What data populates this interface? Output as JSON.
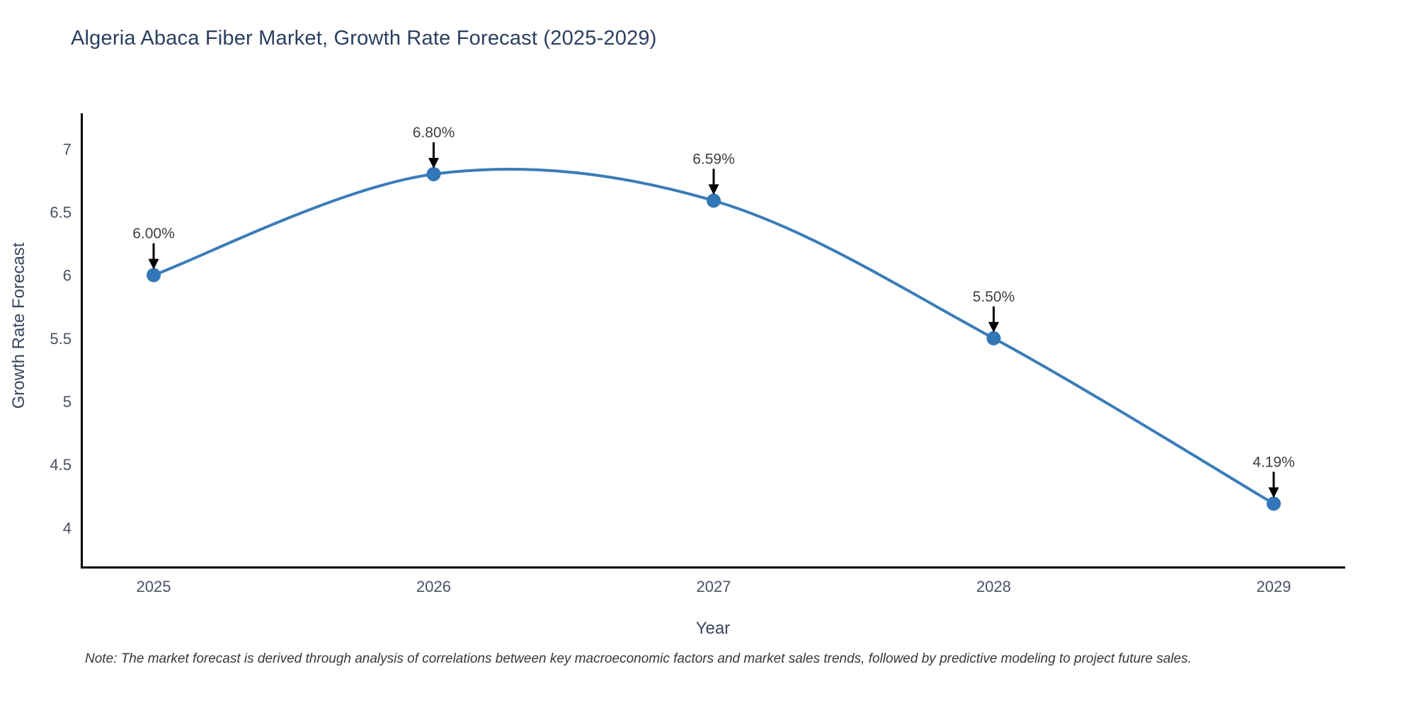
{
  "title": "Algeria Abaca Fiber Market, Growth Rate Forecast (2025-2029)",
  "note": "Note: The market forecast is derived through analysis of correlations between key macroeconomic factors and market sales trends, followed by predictive modeling to project future sales.",
  "chart_data": {
    "type": "line",
    "line_shape": "spline",
    "title": "Algeria Abaca Fiber Market, Growth Rate Forecast (2025-2029)",
    "xlabel": "Year",
    "ylabel": "Growth Rate Forecast",
    "x": [
      2025,
      2026,
      2027,
      2028,
      2029
    ],
    "values": [
      6.0,
      6.8,
      6.59,
      5.5,
      4.19
    ],
    "point_labels": [
      "6.00%",
      "6.80%",
      "6.59%",
      "5.50%",
      "4.19%"
    ],
    "x_tick_labels": [
      "2025",
      "2026",
      "2027",
      "2028",
      "2029"
    ],
    "y_ticks": [
      7,
      6.5,
      6,
      5.5,
      5,
      4.5,
      4
    ],
    "y_tick_labels": [
      "7",
      "6.5",
      "6",
      "5.5",
      "5",
      "4.5",
      "4"
    ],
    "ylim": [
      3.7,
      7.3
    ],
    "xlim": [
      2024.74,
      2029.26
    ],
    "grid": false,
    "legend": "none",
    "colors": {
      "line": "#3a7cb8",
      "marker": "#3277b7",
      "axis": "#000000",
      "annotation_text": "#3f3f3f",
      "annotation_arrow": "#000000",
      "tick_text": "#4a5263",
      "title_text": "#2a3f5f"
    }
  }
}
